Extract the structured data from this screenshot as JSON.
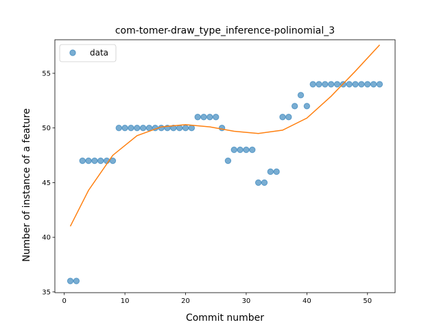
{
  "chart_data": {
    "type": "scatter",
    "title": "com-tomer-draw_type_inference-polinomial_3",
    "xlabel": "Commit number",
    "ylabel": "Number of instance of a feature",
    "xlim": [
      -1.55,
      54.55
    ],
    "ylim": [
      34.93,
      58.07
    ],
    "xticks": [
      0,
      10,
      20,
      30,
      40,
      50
    ],
    "yticks": [
      35,
      40,
      45,
      50,
      55
    ],
    "legend": {
      "position": "top-left",
      "entries": [
        "data"
      ]
    },
    "grid": false,
    "colors": {
      "data": "#1f77b4",
      "fit": "#ff7f0e"
    },
    "series": [
      {
        "name": "data",
        "kind": "points",
        "x": [
          1,
          2,
          3,
          4,
          5,
          6,
          7,
          8,
          9,
          10,
          11,
          12,
          13,
          14,
          15,
          16,
          17,
          18,
          19,
          20,
          21,
          22,
          23,
          24,
          25,
          26,
          27,
          28,
          29,
          30,
          31,
          32,
          33,
          34,
          35,
          36,
          37,
          38,
          39,
          40,
          41,
          42,
          43,
          44,
          45,
          46,
          47,
          48,
          49,
          50,
          51,
          52
        ],
        "y": [
          36,
          36,
          47,
          47,
          47,
          47,
          47,
          47,
          50,
          50,
          50,
          50,
          50,
          50,
          50,
          50,
          50,
          50,
          50,
          50,
          50,
          51,
          51,
          51,
          51,
          50,
          47,
          48,
          48,
          48,
          48,
          45,
          45,
          46,
          46,
          51,
          51,
          52,
          53,
          52,
          54,
          54,
          54,
          54,
          54,
          54,
          54,
          54,
          54,
          54,
          54,
          54
        ]
      },
      {
        "kind": "line",
        "x": [
          1,
          4,
          8,
          12,
          16,
          20,
          24,
          28,
          32,
          36,
          40,
          44,
          48,
          52
        ],
        "y": [
          41.0,
          44.3,
          47.5,
          49.3,
          50.1,
          50.3,
          50.1,
          49.7,
          49.5,
          49.8,
          50.9,
          52.9,
          55.2,
          57.6
        ]
      }
    ]
  }
}
